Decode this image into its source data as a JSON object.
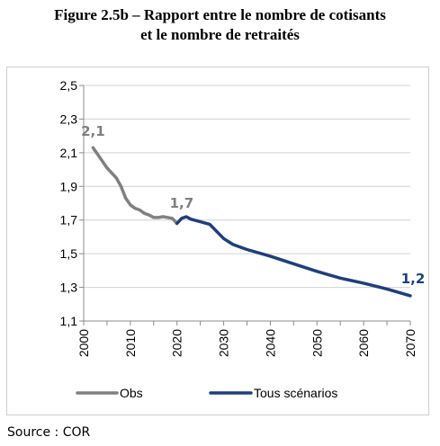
{
  "header": {
    "title_line_1": "Figure 2.5b – Rapport entre le nombre de cotisants",
    "title_line_2": "et le nombre de retraités"
  },
  "footer": {
    "source": "Source : COR"
  },
  "chart_data": {
    "type": "line",
    "title": "Figure 2.5b – Rapport entre le nombre de cotisants et le nombre de retraités",
    "xlabel": "",
    "ylabel": "",
    "xlim": [
      2000,
      2070
    ],
    "ylim": [
      1.1,
      2.5
    ],
    "xticks": [
      2000,
      2010,
      2020,
      2030,
      2040,
      2050,
      2060,
      2070
    ],
    "yticks": [
      1.1,
      1.3,
      1.5,
      1.7,
      1.9,
      2.1,
      2.3,
      2.5
    ],
    "ytick_labels": [
      "1,1",
      "1,3",
      "1,5",
      "1,7",
      "1,9",
      "2,1",
      "2,3",
      "2,5"
    ],
    "grid": "horizontal",
    "legend": "bottom",
    "series": [
      {
        "name": "Obs",
        "color": "#808080",
        "x": [
          2002,
          2003,
          2004,
          2005,
          2006,
          2007,
          2008,
          2009,
          2010,
          2011,
          2012,
          2013,
          2014,
          2015,
          2016,
          2017,
          2018,
          2019,
          2020
        ],
        "y": [
          2.13,
          2.09,
          2.05,
          2.01,
          1.98,
          1.95,
          1.9,
          1.83,
          1.79,
          1.77,
          1.76,
          1.74,
          1.73,
          1.715,
          1.715,
          1.72,
          1.715,
          1.71,
          1.68
        ]
      },
      {
        "name": "Tous scénarios",
        "color": "#1f3f7a",
        "x": [
          2020,
          2021,
          2022,
          2023,
          2025,
          2027,
          2030,
          2032,
          2035,
          2040,
          2045,
          2050,
          2055,
          2060,
          2065,
          2070
        ],
        "y": [
          1.68,
          1.71,
          1.72,
          1.705,
          1.69,
          1.675,
          1.59,
          1.555,
          1.525,
          1.485,
          1.44,
          1.395,
          1.355,
          1.325,
          1.29,
          1.25
        ]
      }
    ],
    "annotations": [
      {
        "text": "2,1",
        "x": 2002,
        "y": 2.13,
        "color": "#808080"
      },
      {
        "text": "1,7",
        "x": 2021,
        "y": 1.72,
        "color": "#808080"
      },
      {
        "text": "1,2",
        "x": 2070,
        "y": 1.25,
        "color": "#1f3f7a"
      }
    ]
  }
}
